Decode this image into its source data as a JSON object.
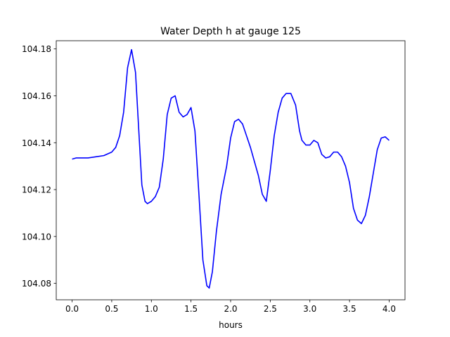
{
  "chart_data": {
    "type": "line",
    "title": "Water Depth h at gauge 125",
    "xlabel": "hours",
    "ylabel": "",
    "xlim": [
      -0.2,
      4.2
    ],
    "ylim": [
      104.073,
      104.1835
    ],
    "xticks": [
      0.0,
      0.5,
      1.0,
      1.5,
      2.0,
      2.5,
      3.0,
      3.5,
      4.0
    ],
    "xtick_labels": [
      "0.0",
      "0.5",
      "1.0",
      "1.5",
      "2.0",
      "2.5",
      "3.0",
      "3.5",
      "4.0"
    ],
    "yticks": [
      104.08,
      104.1,
      104.12,
      104.14,
      104.16,
      104.18
    ],
    "ytick_labels": [
      "104.08",
      "104.10",
      "104.12",
      "104.14",
      "104.16",
      "104.18"
    ],
    "grid": false,
    "series": [
      {
        "name": "",
        "color": "#0000ff",
        "x": [
          0.0,
          0.05,
          0.2,
          0.3,
          0.4,
          0.5,
          0.55,
          0.6,
          0.65,
          0.7,
          0.75,
          0.8,
          0.85,
          0.88,
          0.92,
          0.95,
          1.0,
          1.05,
          1.1,
          1.15,
          1.2,
          1.25,
          1.3,
          1.35,
          1.4,
          1.45,
          1.5,
          1.55,
          1.6,
          1.65,
          1.7,
          1.73,
          1.77,
          1.82,
          1.88,
          1.95,
          2.0,
          2.05,
          2.1,
          2.15,
          2.2,
          2.25,
          2.3,
          2.35,
          2.4,
          2.45,
          2.5,
          2.55,
          2.6,
          2.65,
          2.7,
          2.76,
          2.82,
          2.87,
          2.9,
          2.95,
          3.0,
          3.05,
          3.1,
          3.15,
          3.2,
          3.25,
          3.3,
          3.35,
          3.4,
          3.45,
          3.5,
          3.55,
          3.6,
          3.65,
          3.7,
          3.75,
          3.8,
          3.85,
          3.9,
          3.95,
          4.0
        ],
        "y": [
          104.133,
          104.1335,
          104.1335,
          104.134,
          104.1345,
          104.136,
          104.138,
          104.143,
          104.153,
          104.172,
          104.1797,
          104.17,
          104.14,
          104.122,
          104.115,
          104.114,
          104.115,
          104.117,
          104.121,
          104.133,
          104.152,
          104.159,
          104.16,
          104.153,
          104.151,
          104.152,
          104.155,
          104.145,
          104.118,
          104.09,
          104.079,
          104.078,
          104.085,
          104.102,
          104.118,
          104.13,
          104.142,
          104.149,
          104.15,
          104.148,
          104.143,
          104.138,
          104.132,
          104.126,
          104.118,
          104.115,
          104.128,
          104.143,
          104.153,
          104.159,
          104.161,
          104.161,
          104.156,
          104.145,
          104.141,
          104.139,
          104.139,
          104.141,
          104.14,
          104.135,
          104.1335,
          104.134,
          104.136,
          104.136,
          104.134,
          104.13,
          104.123,
          104.112,
          104.107,
          104.1055,
          104.109,
          104.117,
          104.127,
          104.137,
          104.142,
          104.1425,
          104.141
        ]
      }
    ]
  }
}
